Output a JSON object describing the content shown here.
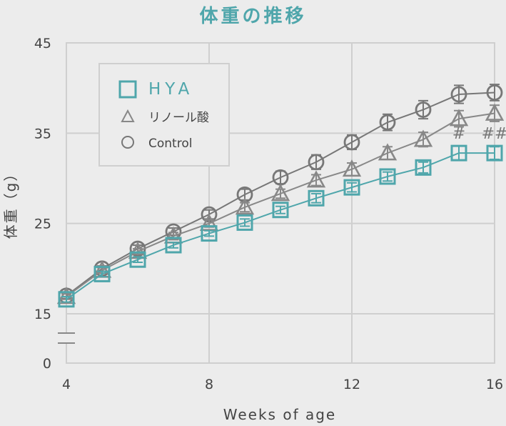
{
  "chart_data": {
    "type": "line",
    "title": "体重の推移",
    "xlabel": "Weeks of age",
    "ylabel": "体重（g）",
    "x_ticks": [
      4,
      8,
      12,
      16
    ],
    "y_ticks": [
      0,
      15,
      25,
      35,
      45
    ],
    "xlim": [
      4,
      16
    ],
    "ylim_upper_segment": [
      15,
      45
    ],
    "axis_break": true,
    "grid": true,
    "legend_position": "top-left",
    "x": [
      4,
      5,
      6,
      7,
      8,
      9,
      10,
      11,
      12,
      13,
      14,
      15,
      16
    ],
    "series": [
      {
        "name": "HYA",
        "marker": "square",
        "color": "#4fa6ab",
        "values": [
          16.6,
          19.4,
          21.0,
          22.6,
          23.9,
          25.1,
          26.5,
          27.8,
          29.0,
          30.2,
          31.2,
          32.8,
          32.8
        ],
        "error": [
          0.3,
          0.3,
          0.3,
          0.3,
          0.3,
          0.4,
          0.4,
          0.5,
          0.5,
          0.5,
          0.6,
          0.8,
          0.7
        ]
      },
      {
        "name": "リノール酸",
        "marker": "triangle",
        "color": "#888888",
        "values": [
          16.9,
          19.8,
          21.9,
          23.6,
          25.0,
          26.8,
          28.3,
          29.8,
          31.0,
          32.8,
          34.3,
          36.6,
          37.2
        ],
        "error": [
          0.3,
          0.3,
          0.3,
          0.4,
          0.4,
          0.5,
          0.5,
          0.6,
          0.7,
          0.7,
          0.8,
          0.9,
          0.9
        ]
      },
      {
        "name": "Control",
        "marker": "circle",
        "color": "#777777",
        "values": [
          17.0,
          20.0,
          22.2,
          24.1,
          26.0,
          28.2,
          30.1,
          31.8,
          34.0,
          36.2,
          37.6,
          39.3,
          39.5
        ],
        "error": [
          0.3,
          0.3,
          0.4,
          0.4,
          0.5,
          0.6,
          0.7,
          0.8,
          0.8,
          0.9,
          1.0,
          1.0,
          0.9
        ]
      }
    ],
    "annotations": [
      {
        "text": "#",
        "x": 15,
        "series": "HYA"
      },
      {
        "text": "##",
        "x": 16,
        "series": "HYA"
      }
    ]
  }
}
